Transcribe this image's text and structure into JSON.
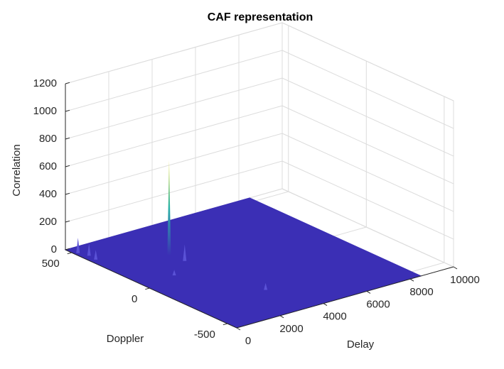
{
  "chart_data": {
    "type": "surface3d",
    "title": "CAF representation",
    "xlabel": "Delay",
    "ylabel": "Doppler",
    "zlabel": "Correlation",
    "xlim": [
      0,
      10000
    ],
    "xticks": [
      0,
      2000,
      4000,
      6000,
      8000,
      10000
    ],
    "ylim": [
      -560,
      540
    ],
    "yticks": [
      -500,
      0,
      500
    ],
    "zlim": [
      0,
      1200
    ],
    "zticks": [
      0,
      200,
      400,
      600,
      800,
      1000,
      1200
    ],
    "grid": true,
    "color": "#3b2fb5",
    "peak_color": "#f2e33c",
    "surface": {
      "delay": [
        0,
        8500
      ],
      "doppler": [
        -560,
        540
      ],
      "correlation": 0
    },
    "peaks": [
      {
        "delay": 2600,
        "doppler": 236,
        "correlation": 690
      },
      {
        "delay": 150,
        "doppler": 480,
        "correlation": 110
      },
      {
        "delay": 300,
        "doppler": 430,
        "correlation": 90
      },
      {
        "delay": 250,
        "doppler": 380,
        "correlation": 70
      },
      {
        "delay": 2700,
        "doppler": 150,
        "correlation": 120
      },
      {
        "delay": 3200,
        "doppler": -300,
        "correlation": 50
      },
      {
        "delay": 1500,
        "doppler": 50,
        "correlation": 40
      }
    ]
  }
}
